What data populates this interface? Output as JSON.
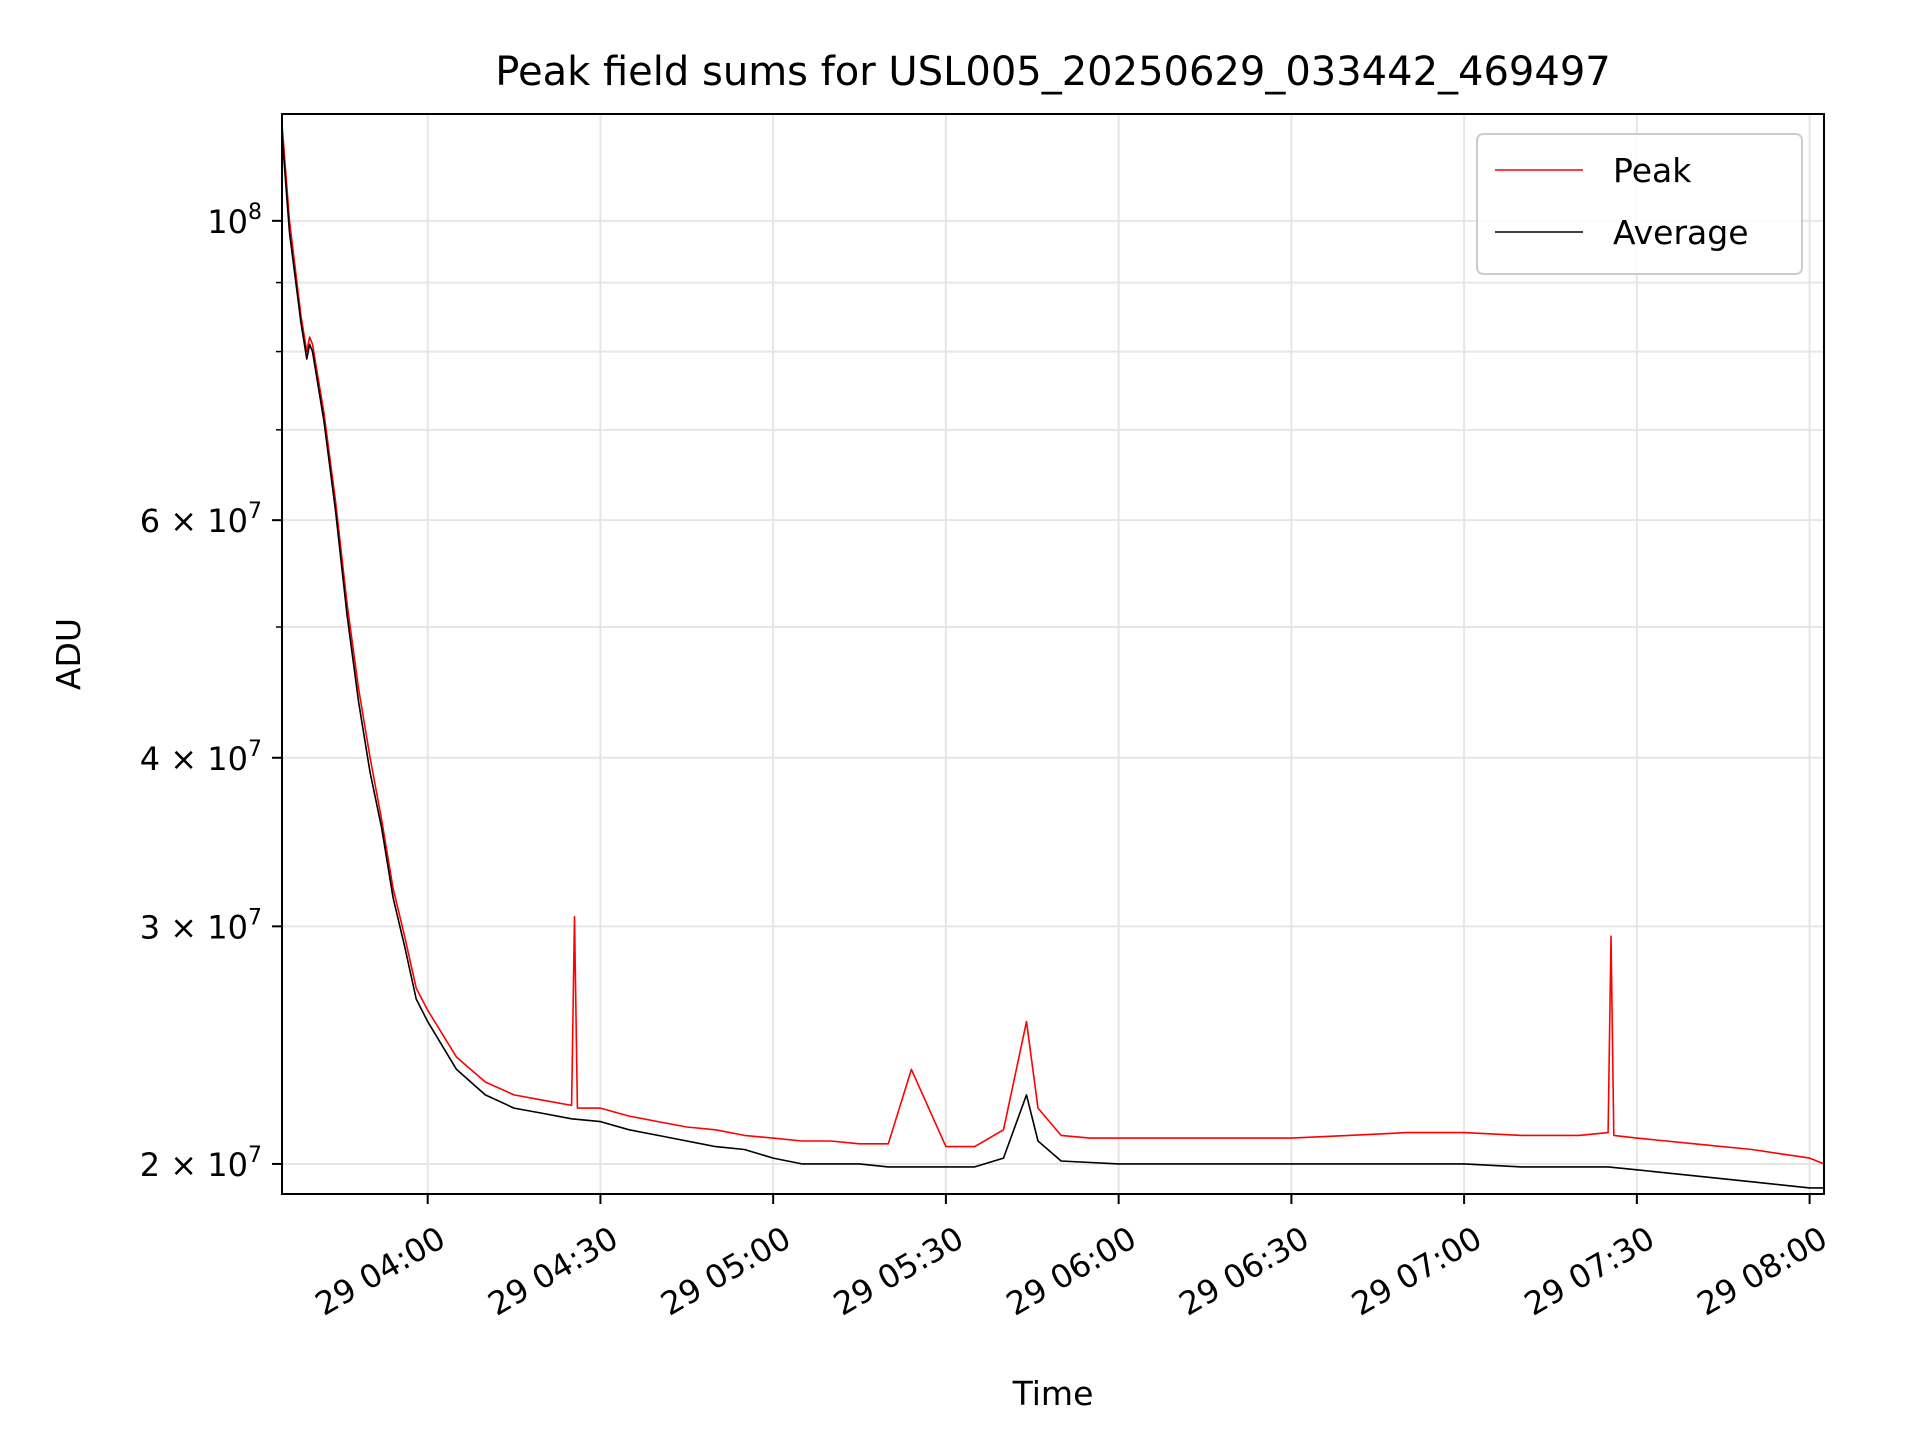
{
  "chart_data": {
    "type": "line",
    "title": "Peak field sums for USL005_20250629_033442_469497",
    "xlabel": "Time",
    "ylabel": "ADU",
    "xlim": [
      "2025-06-29 03:34:42",
      "2025-06-29 08:02:30"
    ],
    "ylim": [
      19000000,
      120000000
    ],
    "yscale": "log",
    "grid": true,
    "legend_position": "top-right",
    "colors": {
      "Peak": "#ff0000",
      "Average": "#000000",
      "grid": "#e6e6e6"
    },
    "x_ticks": [
      {
        "value": "2025-06-29 04:00",
        "label": "29 04:00"
      },
      {
        "value": "2025-06-29 04:30",
        "label": "29 04:30"
      },
      {
        "value": "2025-06-29 05:00",
        "label": "29 05:00"
      },
      {
        "value": "2025-06-29 05:30",
        "label": "29 05:30"
      },
      {
        "value": "2025-06-29 06:00",
        "label": "29 06:00"
      },
      {
        "value": "2025-06-29 06:30",
        "label": "29 06:30"
      },
      {
        "value": "2025-06-29 07:00",
        "label": "29 07:00"
      },
      {
        "value": "2025-06-29 07:30",
        "label": "29 07:30"
      },
      {
        "value": "2025-06-29 08:00",
        "label": "29 08:00"
      }
    ],
    "y_ticks": [
      {
        "value": 20000000,
        "mantissa": "2",
        "base": "10",
        "exp": "7"
      },
      {
        "value": 30000000,
        "mantissa": "3",
        "base": "10",
        "exp": "7"
      },
      {
        "value": 40000000,
        "mantissa": "4",
        "base": "10",
        "exp": "7"
      },
      {
        "value": 60000000,
        "mantissa": "6",
        "base": "10",
        "exp": "7"
      },
      {
        "value": 100000000,
        "mantissa": "",
        "base": "10",
        "exp": "8"
      }
    ],
    "y_minor_ticks": [
      50000000,
      70000000,
      80000000,
      90000000
    ],
    "series": [
      {
        "name": "Peak",
        "x": [
          "2025-06-29 03:34:42",
          "2025-06-29 03:36:00",
          "2025-06-29 03:38:00",
          "2025-06-29 03:39:00",
          "2025-06-29 03:39:30",
          "2025-06-29 03:40:00",
          "2025-06-29 03:42:00",
          "2025-06-29 03:44:00",
          "2025-06-29 03:46:00",
          "2025-06-29 03:48:00",
          "2025-06-29 03:50:00",
          "2025-06-29 03:52:00",
          "2025-06-29 03:54:00",
          "2025-06-29 03:56:00",
          "2025-06-29 03:58:00",
          "2025-06-29 04:00:00",
          "2025-06-29 04:05:00",
          "2025-06-29 04:10:00",
          "2025-06-29 04:15:00",
          "2025-06-29 04:20:00",
          "2025-06-29 04:25:00",
          "2025-06-29 04:25:30",
          "2025-06-29 04:26:00",
          "2025-06-29 04:30:00",
          "2025-06-29 04:35:00",
          "2025-06-29 04:40:00",
          "2025-06-29 04:45:00",
          "2025-06-29 04:50:00",
          "2025-06-29 04:55:00",
          "2025-06-29 05:00:00",
          "2025-06-29 05:05:00",
          "2025-06-29 05:10:00",
          "2025-06-29 05:15:00",
          "2025-06-29 05:20:00",
          "2025-06-29 05:24:00",
          "2025-06-29 05:30:00",
          "2025-06-29 05:35:00",
          "2025-06-29 05:40:00",
          "2025-06-29 05:44:00",
          "2025-06-29 05:46:00",
          "2025-06-29 05:50:00",
          "2025-06-29 05:55:00",
          "2025-06-29 06:00:00",
          "2025-06-29 06:10:00",
          "2025-06-29 06:20:00",
          "2025-06-29 06:30:00",
          "2025-06-29 06:40:00",
          "2025-06-29 06:50:00",
          "2025-06-29 07:00:00",
          "2025-06-29 07:10:00",
          "2025-06-29 07:20:00",
          "2025-06-29 07:25:00",
          "2025-06-29 07:25:30",
          "2025-06-29 07:26:00",
          "2025-06-29 07:30:00",
          "2025-06-29 07:40:00",
          "2025-06-29 07:50:00",
          "2025-06-29 08:00:00",
          "2025-06-29 08:02:30"
        ],
        "values": [
          118000000,
          100000000,
          85000000,
          80000000,
          82000000,
          81000000,
          72000000,
          62000000,
          52000000,
          45000000,
          40000000,
          36000000,
          32000000,
          29500000,
          27000000,
          26000000,
          24000000,
          23000000,
          22500000,
          22300000,
          22100000,
          30500000,
          22000000,
          22000000,
          21700000,
          21500000,
          21300000,
          21200000,
          21000000,
          20900000,
          20800000,
          20800000,
          20700000,
          20700000,
          23500000,
          20600000,
          20600000,
          21200000,
          25500000,
          22000000,
          21000000,
          20900000,
          20900000,
          20900000,
          20900000,
          20900000,
          21000000,
          21100000,
          21100000,
          21000000,
          21000000,
          21100000,
          29500000,
          21000000,
          20900000,
          20700000,
          20500000,
          20200000,
          20000000
        ]
      },
      {
        "name": "Average",
        "x": [
          "2025-06-29 03:34:42",
          "2025-06-29 03:36:00",
          "2025-06-29 03:38:00",
          "2025-06-29 03:39:00",
          "2025-06-29 03:39:30",
          "2025-06-29 03:40:00",
          "2025-06-29 03:42:00",
          "2025-06-29 03:44:00",
          "2025-06-29 03:46:00",
          "2025-06-29 03:48:00",
          "2025-06-29 03:50:00",
          "2025-06-29 03:52:00",
          "2025-06-29 03:54:00",
          "2025-06-29 03:56:00",
          "2025-06-29 03:58:00",
          "2025-06-29 04:00:00",
          "2025-06-29 04:05:00",
          "2025-06-29 04:10:00",
          "2025-06-29 04:15:00",
          "2025-06-29 04:20:00",
          "2025-06-29 04:25:00",
          "2025-06-29 04:30:00",
          "2025-06-29 04:35:00",
          "2025-06-29 04:40:00",
          "2025-06-29 04:45:00",
          "2025-06-29 04:50:00",
          "2025-06-29 04:55:00",
          "2025-06-29 05:00:00",
          "2025-06-29 05:05:00",
          "2025-06-29 05:10:00",
          "2025-06-29 05:15:00",
          "2025-06-29 05:20:00",
          "2025-06-29 05:30:00",
          "2025-06-29 05:35:00",
          "2025-06-29 05:40:00",
          "2025-06-29 05:44:00",
          "2025-06-29 05:46:00",
          "2025-06-29 05:50:00",
          "2025-06-29 06:00:00",
          "2025-06-29 06:10:00",
          "2025-06-29 06:20:00",
          "2025-06-29 06:30:00",
          "2025-06-29 06:40:00",
          "2025-06-29 06:50:00",
          "2025-06-29 07:00:00",
          "2025-06-29 07:10:00",
          "2025-06-29 07:20:00",
          "2025-06-29 07:25:00",
          "2025-06-29 07:30:00",
          "2025-06-29 07:40:00",
          "2025-06-29 07:50:00",
          "2025-06-29 08:00:00",
          "2025-06-29 08:02:30"
        ],
        "values": [
          116000000,
          98000000,
          84000000,
          79000000,
          81000000,
          80000000,
          71000000,
          61000000,
          51000000,
          44000000,
          39000000,
          35500000,
          31500000,
          29000000,
          26500000,
          25500000,
          23500000,
          22500000,
          22000000,
          21800000,
          21600000,
          21500000,
          21200000,
          21000000,
          20800000,
          20600000,
          20500000,
          20200000,
          20000000,
          20000000,
          20000000,
          19900000,
          19900000,
          19900000,
          20200000,
          22500000,
          20800000,
          20100000,
          20000000,
          20000000,
          20000000,
          20000000,
          20000000,
          20000000,
          20000000,
          19900000,
          19900000,
          19900000,
          19800000,
          19600000,
          19400000,
          19200000,
          19200000
        ]
      }
    ]
  }
}
